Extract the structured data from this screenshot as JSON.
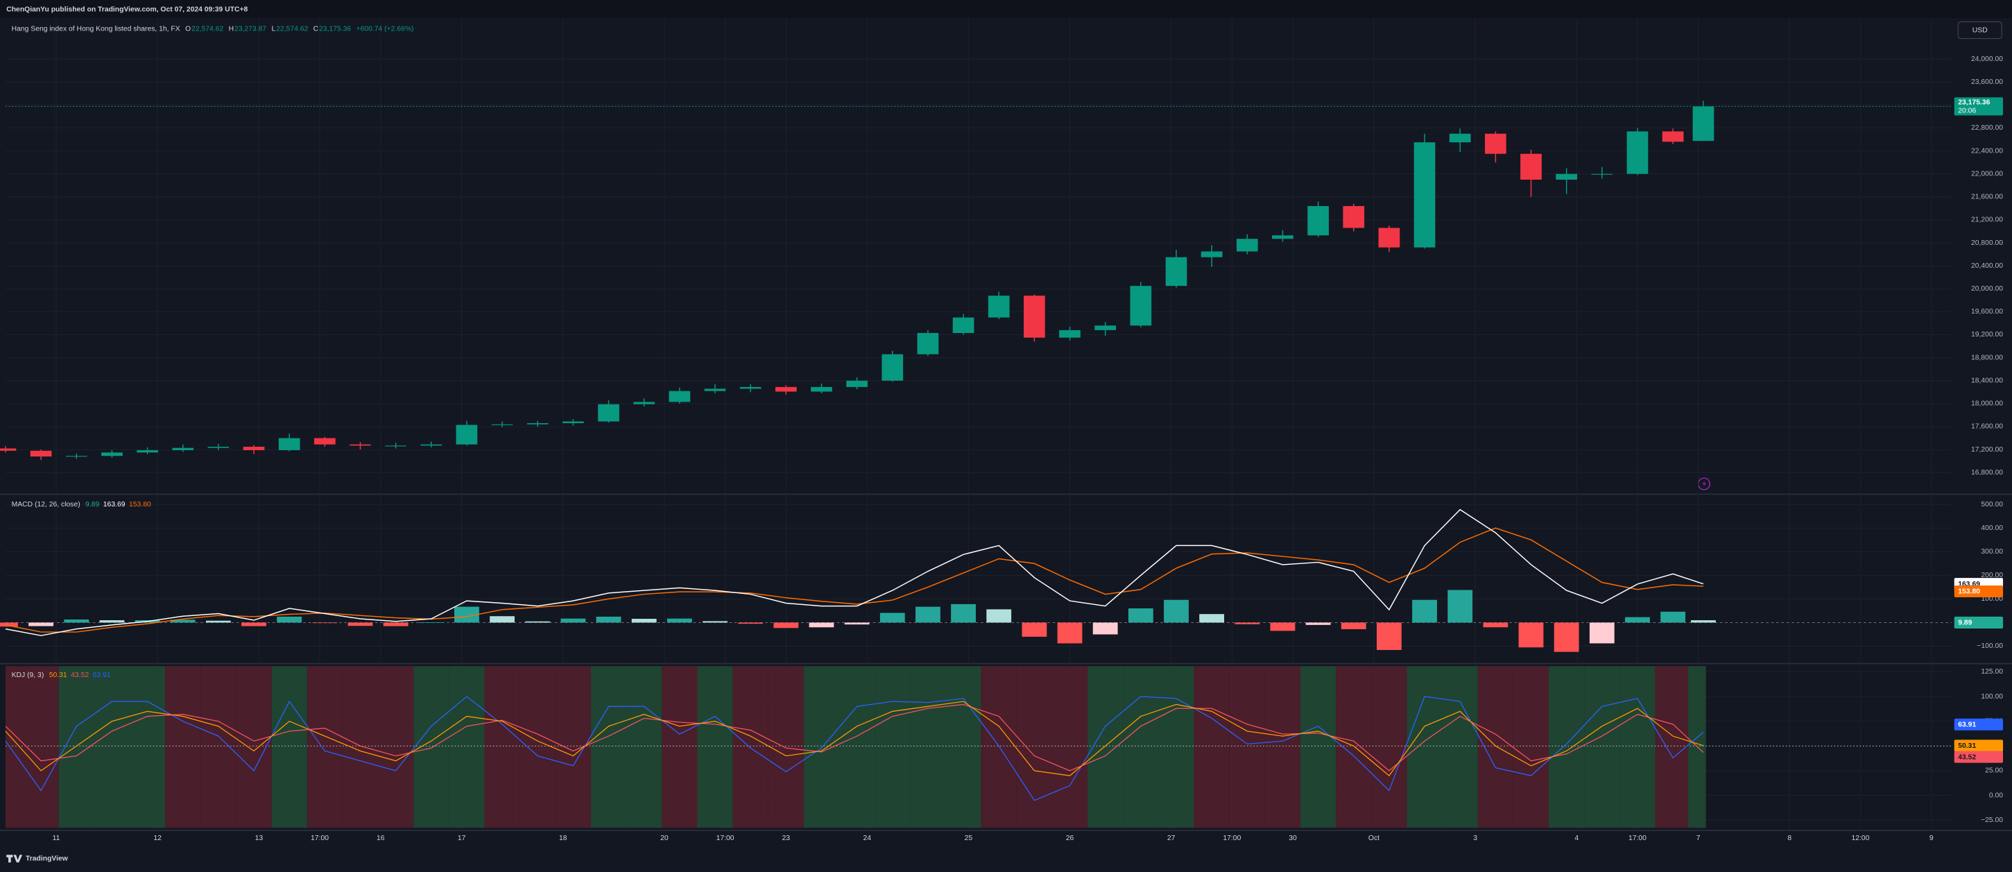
{
  "header": {
    "publisher": "ChenQianYu published on TradingView.com, Oct 07, 2024 09:39 UTC+8",
    "currency": "USD",
    "footer": "TradingView"
  },
  "chart_data": [
    {
      "type": "candlestick",
      "title": "Hang Seng index of Hong Kong listed shares, 1h, FX",
      "ohlc_legend": [
        {
          "key": "O",
          "value": "22,574.62"
        },
        {
          "key": "H",
          "value": "23,273.87"
        },
        {
          "key": "L",
          "value": "22,574.62"
        },
        {
          "key": "C",
          "value": "23,175.36"
        }
      ],
      "change_label": "+600.74 (+2.66%)",
      "last_price": {
        "value": 23175.36,
        "label": "23,175.36",
        "countdown": "20:06"
      },
      "up_color": "#089981",
      "down_color": "#f23645",
      "grid": true,
      "xlim": [
        0,
        192
      ],
      "xticks": [
        {
          "value": 5,
          "label": "11"
        },
        {
          "value": 15,
          "label": "12"
        },
        {
          "value": 25,
          "label": "13"
        },
        {
          "value": 31,
          "label": "17:00"
        },
        {
          "value": 37,
          "label": "16"
        },
        {
          "value": 45,
          "label": "17"
        },
        {
          "value": 55,
          "label": "18"
        },
        {
          "value": 65,
          "label": "20"
        },
        {
          "value": 71,
          "label": "17:00"
        },
        {
          "value": 77,
          "label": "23"
        },
        {
          "value": 85,
          "label": "24"
        },
        {
          "value": 95,
          "label": "25"
        },
        {
          "value": 105,
          "label": "26"
        },
        {
          "value": 115,
          "label": "27"
        },
        {
          "value": 121,
          "label": "17:00"
        },
        {
          "value": 127,
          "label": "30"
        },
        {
          "value": 135,
          "label": "Oct"
        },
        {
          "value": 145,
          "label": "3"
        },
        {
          "value": 155,
          "label": "4"
        },
        {
          "value": 161,
          "label": "17:00"
        },
        {
          "value": 167,
          "label": "7"
        },
        {
          "value": 176,
          "label": "8"
        },
        {
          "value": 183,
          "label": "12:00"
        },
        {
          "value": 190,
          "label": "9"
        }
      ],
      "ylim": [
        16447,
        24715
      ],
      "yticks": [
        {
          "value": 16800,
          "label": "16,800.00"
        },
        {
          "value": 17200,
          "label": "17,200.00"
        },
        {
          "value": 17600,
          "label": "17,600.00"
        },
        {
          "value": 18000,
          "label": "18,000.00"
        },
        {
          "value": 18400,
          "label": "18,400.00"
        },
        {
          "value": 18800,
          "label": "18,800.00"
        },
        {
          "value": 19200,
          "label": "19,200.00"
        },
        {
          "value": 19600,
          "label": "19,600.00"
        },
        {
          "value": 20000,
          "label": "20,000.00"
        },
        {
          "value": 20400,
          "label": "20,400.00"
        },
        {
          "value": 20800,
          "label": "20,800.00"
        },
        {
          "value": 21200,
          "label": "21,200.00"
        },
        {
          "value": 21600,
          "label": "21,600.00"
        },
        {
          "value": 22000,
          "label": "22,000.00"
        },
        {
          "value": 22400,
          "label": "22,400.00"
        },
        {
          "value": 22800,
          "label": "22,800.00"
        },
        {
          "value": 23200,
          "label": "23,200.00"
        },
        {
          "value": 23600,
          "label": "23,600.00"
        },
        {
          "value": 24000,
          "label": "24,000.00"
        }
      ],
      "x": [
        0,
        3.5,
        7,
        10.5,
        14,
        17.5,
        21,
        24.5,
        28,
        31.5,
        35,
        38.5,
        42,
        45.5,
        49,
        52.5,
        56,
        59.5,
        63,
        66.5,
        70,
        73.5,
        77,
        80.5,
        84,
        87.5,
        91,
        94.5,
        98,
        101.5,
        105,
        108.5,
        112,
        115.5,
        119,
        122.5,
        126,
        129.5,
        133,
        136.5,
        140,
        143.5,
        147,
        150.5,
        154,
        157.5,
        161,
        164.5,
        167.5
      ],
      "open": [
        17220,
        17180,
        17080,
        17090,
        17150,
        17190,
        17230,
        17250,
        17190,
        17400,
        17290,
        17270,
        17270,
        17290,
        17630,
        17640,
        17660,
        17690,
        17990,
        18030,
        18220,
        18260,
        18290,
        18210,
        18290,
        18400,
        18860,
        19230,
        19500,
        19880,
        19150,
        19280,
        19360,
        20050,
        20550,
        20650,
        20870,
        20930,
        21440,
        21060,
        20720,
        22550,
        22700,
        22350,
        21900,
        22000,
        22000,
        22740,
        22574.62
      ],
      "high": [
        17260,
        17200,
        17130,
        17190,
        17240,
        17290,
        17300,
        17280,
        17480,
        17420,
        17330,
        17320,
        17340,
        17700,
        17690,
        17700,
        17730,
        18060,
        18090,
        18280,
        18340,
        18340,
        18320,
        18350,
        18460,
        18920,
        19280,
        19560,
        19950,
        19900,
        19340,
        19420,
        20120,
        20680,
        20760,
        20950,
        21020,
        21520,
        21480,
        21100,
        22700,
        22790,
        22740,
        22420,
        22100,
        22120,
        22800,
        22790,
        23273.87
      ],
      "low": [
        17150,
        17020,
        17040,
        17060,
        17120,
        17160,
        17190,
        17120,
        17170,
        17250,
        17200,
        17220,
        17240,
        17270,
        17590,
        17600,
        17620,
        17670,
        17950,
        18000,
        18180,
        18200,
        18160,
        18180,
        18250,
        18380,
        18830,
        19200,
        19470,
        19080,
        19100,
        19180,
        19330,
        20020,
        20380,
        20600,
        20820,
        20900,
        21000,
        20640,
        20700,
        22380,
        22200,
        21600,
        21650,
        21920,
        21980,
        22520,
        22574.62
      ],
      "close": [
        17180,
        17080,
        17090,
        17150,
        17190,
        17230,
        17250,
        17190,
        17400,
        17290,
        17270,
        17270,
        17290,
        17630,
        17640,
        17660,
        17690,
        17990,
        18030,
        18220,
        18260,
        18290,
        18210,
        18290,
        18400,
        18860,
        19230,
        19500,
        19880,
        19150,
        19280,
        19360,
        20050,
        20550,
        20650,
        20870,
        20930,
        21440,
        21060,
        20720,
        22550,
        22700,
        22350,
        21900,
        22000,
        22000,
        22740,
        22560,
        23175.36
      ]
    },
    {
      "type": "macd",
      "title": "MACD (12, 26, close)",
      "last_labels": {
        "histogram": "9.89",
        "macd": "163.69",
        "signal": "153.80"
      },
      "xlim": [
        0,
        192
      ],
      "ylim": [
        -168,
        538
      ],
      "hline": 0,
      "yticks": [
        {
          "value": -100,
          "label": "−100.00"
        },
        {
          "value": 100,
          "label": "100.00"
        },
        {
          "value": 200,
          "label": "200.00"
        },
        {
          "value": 300,
          "label": "300.00"
        },
        {
          "value": 400,
          "label": "400.00"
        },
        {
          "value": 500,
          "label": "500.00"
        }
      ],
      "x": [
        0,
        3.5,
        7,
        10.5,
        14,
        17.5,
        21,
        24.5,
        28,
        31.5,
        35,
        38.5,
        42,
        45.5,
        49,
        52.5,
        56,
        59.5,
        63,
        66.5,
        70,
        73.5,
        77,
        80.5,
        84,
        87.5,
        91,
        94.5,
        98,
        101.5,
        105,
        108.5,
        112,
        115.5,
        119,
        122.5,
        126,
        129.5,
        133,
        136.5,
        140,
        143.5,
        147,
        150.5,
        154,
        157.5,
        161,
        164.5,
        167.5
      ],
      "macd": {
        "color": "#ffffff",
        "values": [
          -27,
          -55,
          -27,
          -10,
          5,
          27,
          38,
          10,
          60,
          38,
          16,
          5,
          16,
          92,
          82,
          70,
          92,
          125,
          136,
          147,
          136,
          120,
          82,
          70,
          70,
          136,
          217,
          288,
          326,
          190,
          92,
          70,
          200,
          326,
          326,
          288,
          245,
          255,
          217,
          54,
          326,
          478,
          380,
          245,
          136,
          82,
          163,
          206,
          163.69
        ]
      },
      "signal": {
        "color": "#ff6d00",
        "values": [
          -10,
          -40,
          -40,
          -20,
          -5,
          15,
          30,
          25,
          35,
          40,
          30,
          20,
          15,
          25,
          55,
          65,
          75,
          100,
          120,
          130,
          130,
          125,
          105,
          90,
          78,
          95,
          150,
          210,
          270,
          250,
          180,
          120,
          140,
          230,
          290,
          295,
          280,
          265,
          245,
          170,
          230,
          340,
          400,
          350,
          260,
          170,
          140,
          160,
          153.8
        ]
      },
      "histogram": {
        "color": "#22ab94",
        "colors": {
          "pos_rising": "#26a69a",
          "pos_falling": "#b2dfdb",
          "neg_falling": "#ff5252",
          "neg_rising": "#ffcdd2"
        },
        "values": [
          -17,
          -15,
          13,
          10,
          10,
          12,
          8,
          -15,
          25,
          -2,
          -14,
          -15,
          1,
          67,
          27,
          5,
          17,
          25,
          16,
          17,
          6,
          -5,
          -23,
          -20,
          -8,
          41,
          67,
          78,
          56,
          -60,
          -88,
          -50,
          60,
          96,
          36,
          -7,
          -35,
          -10,
          -28,
          -116,
          96,
          138,
          -20,
          -105,
          -124,
          -88,
          23,
          46,
          9.89
        ]
      }
    },
    {
      "type": "kdj",
      "title": "KDJ (9, 3)",
      "last_labels": {
        "k": "50.31",
        "d": "43.52",
        "j": "63.91"
      },
      "xlim": [
        0,
        192
      ],
      "ylim": [
        -34,
        132
      ],
      "hline": 50,
      "background": {
        "k_above": "#1f4432",
        "k_below": "#4a1e2a"
      },
      "yticks": [
        {
          "value": -25,
          "label": "−25.00"
        },
        {
          "value": 0,
          "label": "0.00"
        },
        {
          "value": 25,
          "label": "25.00"
        },
        {
          "value": 75,
          "label": "75.00"
        },
        {
          "value": 100,
          "label": "100.00"
        },
        {
          "value": 125,
          "label": "125.00"
        }
      ],
      "x": [
        0,
        3.5,
        7,
        10.5,
        14,
        17.5,
        21,
        24.5,
        28,
        31.5,
        35,
        38.5,
        42,
        45.5,
        49,
        52.5,
        56,
        59.5,
        63,
        66.5,
        70,
        73.5,
        77,
        80.5,
        84,
        87.5,
        91,
        94.5,
        98,
        101.5,
        105,
        108.5,
        112,
        115.5,
        119,
        122.5,
        126,
        129.5,
        133,
        136.5,
        140,
        143.5,
        147,
        150.5,
        154,
        157.5,
        161,
        164.5,
        167.5
      ],
      "k": {
        "color": "#ff9800",
        "values": [
          65,
          25,
          50,
          75,
          85,
          80,
          70,
          45,
          75,
          60,
          45,
          35,
          55,
          80,
          75,
          55,
          40,
          70,
          82,
          70,
          75,
          60,
          40,
          45,
          70,
          85,
          90,
          95,
          70,
          25,
          20,
          50,
          80,
          92,
          85,
          65,
          60,
          65,
          50,
          20,
          70,
          85,
          50,
          30,
          45,
          70,
          88,
          60,
          50.31
        ]
      },
      "d": {
        "color": "#f7525f",
        "values": [
          70,
          35,
          40,
          65,
          80,
          82,
          75,
          55,
          65,
          68,
          50,
          40,
          48,
          70,
          76,
          62,
          45,
          60,
          78,
          74,
          72,
          66,
          48,
          44,
          60,
          80,
          88,
          92,
          80,
          40,
          25,
          40,
          70,
          88,
          88,
          72,
          62,
          63,
          55,
          25,
          55,
          80,
          62,
          35,
          42,
          60,
          82,
          72,
          43.52
        ]
      },
      "j": {
        "color": "#2962ff",
        "values": [
          55,
          5,
          70,
          95,
          95,
          75,
          60,
          25,
          95,
          45,
          35,
          25,
          70,
          100,
          72,
          40,
          30,
          90,
          90,
          62,
          80,
          48,
          24,
          48,
          90,
          95,
          94,
          98,
          50,
          -5,
          10,
          70,
          100,
          98,
          78,
          52,
          55,
          70,
          40,
          5,
          100,
          95,
          28,
          20,
          52,
          90,
          98,
          38,
          63.91
        ]
      }
    }
  ]
}
